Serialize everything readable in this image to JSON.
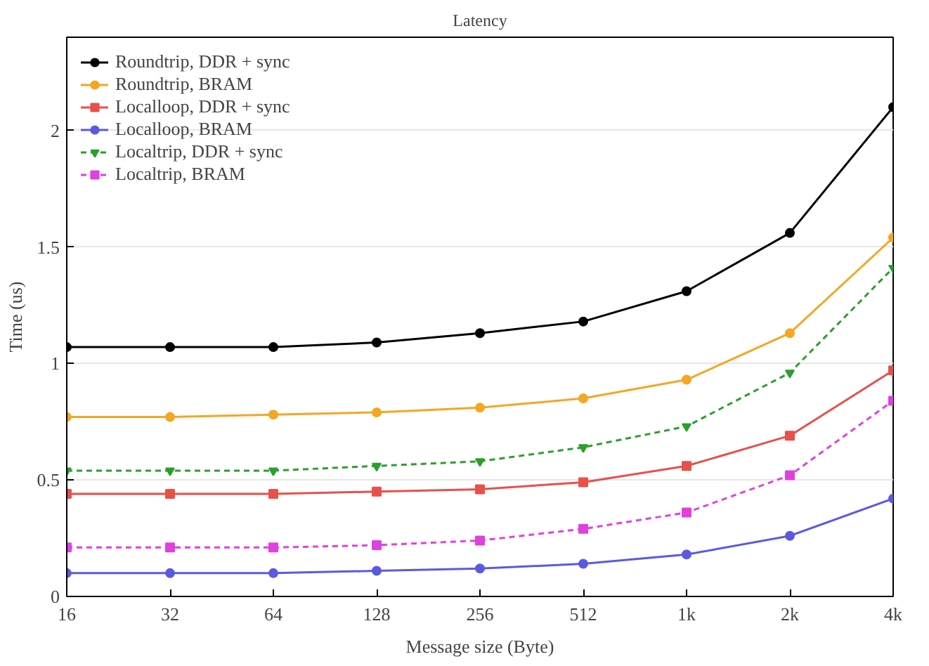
{
  "chart_data": {
    "type": "line",
    "title": "Latency",
    "xlabel": "Message size (Byte)",
    "ylabel": "Time (us)",
    "categories": [
      "16",
      "32",
      "64",
      "128",
      "256",
      "512",
      "1k",
      "2k",
      "4k"
    ],
    "ylim": [
      0,
      2.4
    ],
    "yticks": [
      0,
      0.5,
      1,
      1.5,
      2
    ],
    "grid": "y",
    "legend": "top left",
    "series": [
      {
        "name": "Roundtrip, DDR + sync",
        "color": "#000000",
        "marker": "circle",
        "line_style": "solid",
        "values": [
          1.07,
          1.07,
          1.07,
          1.09,
          1.13,
          1.18,
          1.31,
          1.56,
          2.1
        ]
      },
      {
        "name": "Roundtrip, BRAM",
        "color": "#f5a623",
        "marker": "circle",
        "line_style": "solid",
        "values": [
          0.77,
          0.77,
          0.78,
          0.79,
          0.81,
          0.85,
          0.93,
          1.13,
          1.54
        ]
      },
      {
        "name": "Localloop, DDR + sync",
        "color": "#e8504a",
        "marker": "square",
        "line_style": "solid",
        "values": [
          0.44,
          0.44,
          0.44,
          0.45,
          0.46,
          0.49,
          0.56,
          0.69,
          0.97
        ]
      },
      {
        "name": "Localloop, BRAM",
        "color": "#5a5ae0",
        "marker": "circle",
        "line_style": "solid",
        "values": [
          0.1,
          0.1,
          0.1,
          0.11,
          0.12,
          0.14,
          0.18,
          0.26,
          0.42
        ]
      },
      {
        "name": "Localtrip, DDR + sync",
        "color": "#2aa02a",
        "marker": "triangle",
        "line_style": "dashed",
        "values": [
          0.54,
          0.54,
          0.54,
          0.56,
          0.58,
          0.64,
          0.73,
          0.96,
          1.41
        ]
      },
      {
        "name": "Localtrip, BRAM",
        "color": "#e040e0",
        "marker": "square",
        "line_style": "dashed",
        "values": [
          0.21,
          0.21,
          0.21,
          0.22,
          0.24,
          0.29,
          0.36,
          0.52,
          0.84
        ]
      }
    ]
  }
}
